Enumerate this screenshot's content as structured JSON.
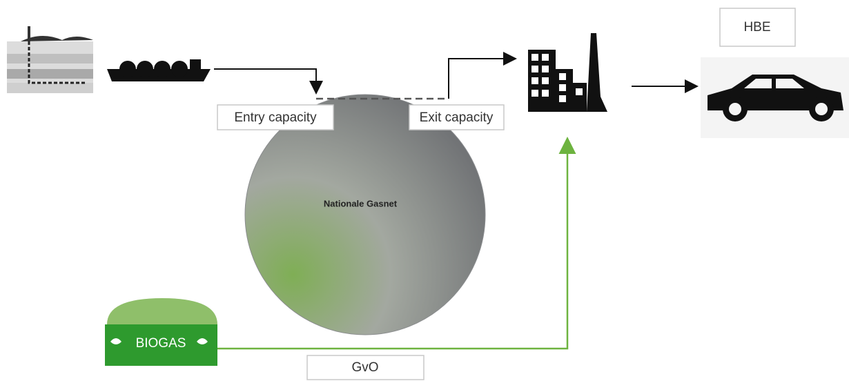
{
  "nodes": {
    "entry": {
      "label": "Entry capacity"
    },
    "exit": {
      "label": "Exit capacity"
    },
    "network": {
      "label": "Nationale Gasnet"
    },
    "certificate": {
      "label": "HBE"
    },
    "origin": {
      "label": "GvO"
    },
    "biogas": {
      "label": "BIOGAS"
    }
  }
}
